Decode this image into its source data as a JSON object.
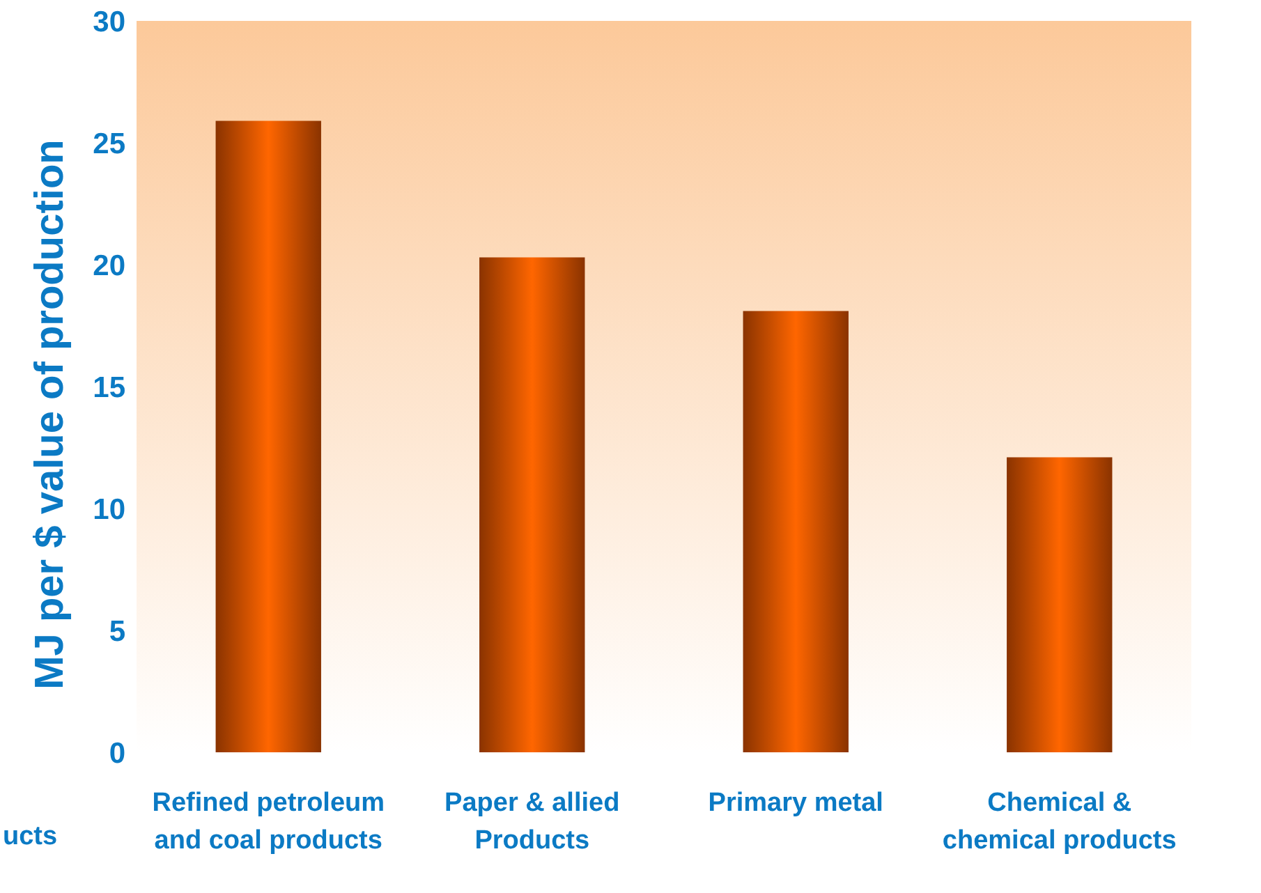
{
  "chart_data": {
    "type": "bar",
    "ylabel": "MJ per $ value of production",
    "categories": [
      "Refined petroleum and coal products",
      "Paper &  allied Products",
      "Primary metal",
      "Chemical & chemical products"
    ],
    "values": [
      25.9,
      20.3,
      18.1,
      12.1
    ],
    "color": "#ff6600",
    "ylim": [
      0,
      30
    ],
    "yticks": [
      0,
      5,
      10,
      15,
      20,
      25,
      30
    ],
    "grid": false,
    "annotations": [
      "ucts"
    ]
  }
}
